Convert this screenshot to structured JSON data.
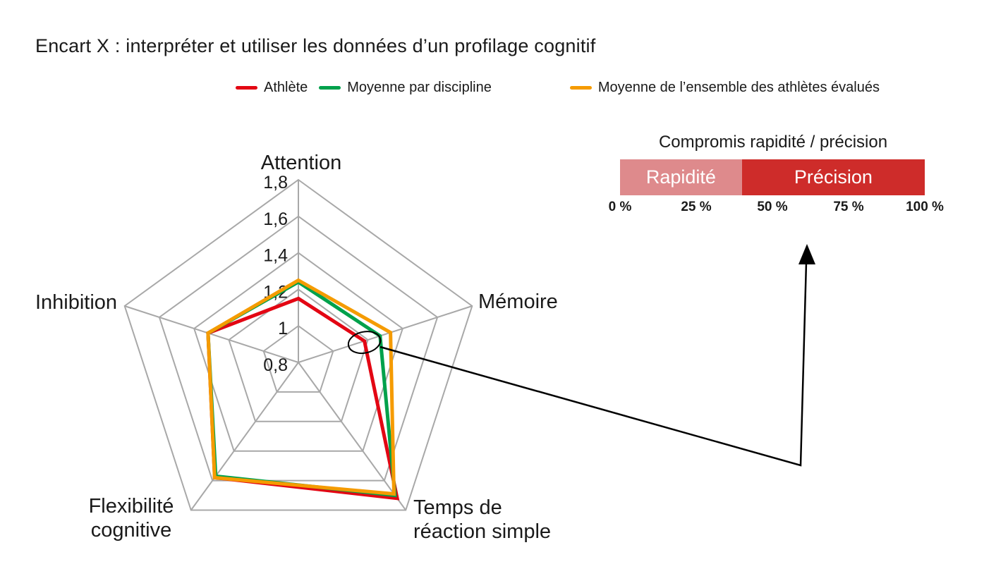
{
  "page_title": "Encart X : interpréter et utiliser les données d’un profilage cognitif",
  "legend": {
    "items": [
      {
        "label": "Athlète",
        "color": "#E30613"
      },
      {
        "label": "Moyenne par discipline",
        "color": "#00A14B"
      },
      {
        "label": "Moyenne de l’ensemble des athlètes évalués",
        "color": "#F59B00"
      }
    ]
  },
  "chart_data": [
    {
      "type": "radar",
      "axes": [
        "Attention",
        "Mémoire",
        "Temps de réaction simple",
        "Flexibilité cognitive",
        "Inhibition"
      ],
      "axis_label_lines": [
        [
          "Attention"
        ],
        [
          "Mémoire"
        ],
        [
          "Temps de",
          "réaction simple"
        ],
        [
          "Flexibilité",
          "cognitive"
        ],
        [
          "Inhibition"
        ]
      ],
      "scale": {
        "min": 0.8,
        "max": 1.8,
        "step": 0.2,
        "tick_labels": [
          "0,8",
          "1",
          "1,2",
          "1,4",
          "1,6",
          "1,8"
        ]
      },
      "grid": {
        "rings": 5,
        "color": "#A8A8A8"
      },
      "series": [
        {
          "name": "Athlète",
          "color": "#E30613",
          "values": [
            1.15,
            1.18,
            1.72,
            1.58,
            1.32
          ]
        },
        {
          "name": "Moyenne par discipline",
          "color": "#00A14B",
          "values": [
            1.24,
            1.27,
            1.7,
            1.57,
            1.32
          ]
        },
        {
          "name": "Moyenne de l’ensemble des athlètes évalués",
          "color": "#F59B00",
          "values": [
            1.25,
            1.33,
            1.69,
            1.58,
            1.32
          ]
        }
      ],
      "annotation": {
        "highlight_series": "Athlète",
        "highlight_axis": "Mémoire",
        "shape": "ellipse-outline",
        "arrow_points_to": "Compromis rapidité / précision"
      }
    },
    {
      "type": "bar",
      "title": "Compromis rapidité / précision",
      "orientation": "horizontal-stacked",
      "xlim": [
        0,
        100
      ],
      "segments": [
        {
          "label": "Rapidité",
          "value_pct": 40,
          "color": "#DE8A8C"
        },
        {
          "label": "Précision",
          "value_pct": 60,
          "color": "#CE2C2A"
        }
      ],
      "axis_ticks": [
        "0 %",
        "25 %",
        "50 %",
        "75 %",
        "100 %"
      ]
    }
  ]
}
